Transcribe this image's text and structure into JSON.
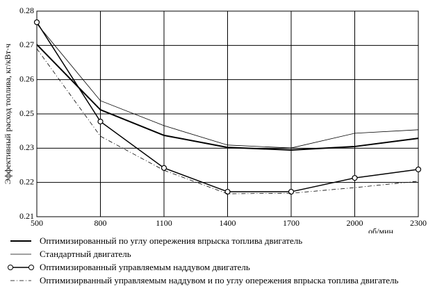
{
  "chart_data": {
    "type": "line",
    "y_label": "Эффективный расход топлива, кг/кВт·ч",
    "x_label": "об/мин",
    "x": [
      500,
      800,
      1100,
      1400,
      1700,
      2000,
      2300
    ],
    "xlim": [
      500,
      2300
    ],
    "xticks": [
      500,
      800,
      1100,
      1400,
      1700,
      2000,
      2300
    ],
    "ylim": [
      0.21,
      0.28
    ],
    "yticks": [
      0.21,
      {
        "value": 0.22167,
        "label": "0.22"
      },
      {
        "value": 0.23333,
        "label": "0.23"
      },
      {
        "value": 0.245,
        "label": "0.25"
      },
      {
        "value": 0.25667,
        "label": "0.26"
      },
      {
        "value": 0.26833,
        "label": "0.27"
      },
      0.28
    ],
    "grid": true,
    "series": [
      {
        "name": "Оптимизированный по углу опережения впрыска топлива двигатель",
        "color": "#000000",
        "line_width": 2,
        "dash": "none",
        "marker": "none",
        "values": [
          0.2686,
          0.2464,
          0.2377,
          0.2336,
          0.2327,
          0.2339,
          0.2367
        ]
      },
      {
        "name": "Стандартный двигатель",
        "color": "#000000",
        "line_width": 0.8,
        "dash": "none",
        "marker": "none",
        "values": [
          0.2757,
          0.2495,
          0.241,
          0.2344,
          0.2334,
          0.2384,
          0.2396
        ]
      },
      {
        "name": "Оптимизированный управляемым наддувом двигатель",
        "color": "#000000",
        "line_width": 1.5,
        "dash": "none",
        "marker": "circle",
        "values": [
          0.2762,
          0.2424,
          0.2266,
          0.2185,
          0.2185,
          0.2232,
          0.2261
        ]
      },
      {
        "name": "Оптимизирванный управляемым наддувом и по углу опережения впрыска топлива двигатель",
        "color": "#000000",
        "line_width": 0.8,
        "dash": "6,3,1,3",
        "marker": "none",
        "values": [
          0.2672,
          0.2374,
          0.2258,
          0.2178,
          0.218,
          0.2199,
          0.2221
        ]
      }
    ]
  }
}
